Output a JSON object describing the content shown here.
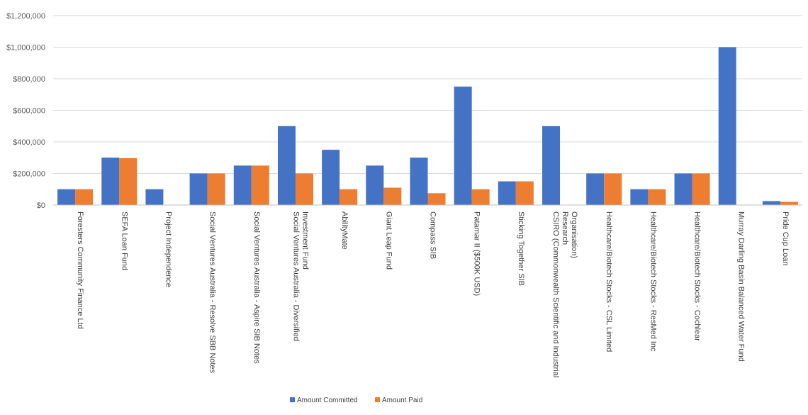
{
  "chart_data": {
    "type": "bar",
    "title": "",
    "xlabel": "",
    "ylabel": "",
    "ylim": [
      0,
      1200000
    ],
    "yticks": [
      0,
      200000,
      400000,
      600000,
      800000,
      1000000,
      1200000
    ],
    "ytick_labels": [
      "$0",
      "$200,000",
      "$400,000",
      "$600,000",
      "$800,000",
      "$1,000,000",
      "$1,200,000"
    ],
    "grid": "horizontal",
    "legend_position": "bottom",
    "categories": [
      "Foresters Community Finance Ltd",
      "SEFA Loan Fund",
      "Project Independence",
      "Social Ventures Australia - Resolve SBB Notes",
      "Social Ventures Australia - Aspire SIB Notes",
      "Social Ventures Australia - Diversified Investment Fund",
      "AbilityMate",
      "Giant Leap Fund",
      "Compass SIB",
      "Patamar II ($500K USD)",
      "Sticking Together SIB",
      "CSIRO (Commonwealth Scientific and Industrial Research Organisation)",
      "Healthcare/Biotech Stocks - CSL Limited",
      "Healthcare/Biotech Stocks - ResMed Inc",
      "Healthcare/Biotech Stocks - Cochlear",
      "Murray Darling Basin Balanced Water Fund",
      "Pride Cup Loan"
    ],
    "category_label_lines": [
      [
        "Foresters Community Finance Ltd"
      ],
      [
        "SEFA Loan Fund"
      ],
      [
        "Project Independence"
      ],
      [
        "Social Ventures Australia - Resolve SBB Notes"
      ],
      [
        "Social Ventures Australia - Aspire SIB Notes"
      ],
      [
        "Social Ventures Australia - Diversified",
        "Investment Fund"
      ],
      [
        "AbilityMate"
      ],
      [
        "Giant Leap Fund"
      ],
      [
        "Compass SIB"
      ],
      [
        "Patamar II ($500K USD)"
      ],
      [
        "Sticking Together SIB"
      ],
      [
        "CSIRO (Commonwealth Scientific and Industrial",
        "Research",
        "Organisation)"
      ],
      [
        "Healthcare/Biotech Stocks - CSL Limited"
      ],
      [
        "Healthcare/Biotech Stocks - ResMed Inc"
      ],
      [
        "Healthcare/Biotech Stocks - Cochlear"
      ],
      [
        "Murray Darling Basin Balanced Water Fund"
      ],
      [
        "Pride Cup Loan"
      ]
    ],
    "series": [
      {
        "name": "Amount  Committed",
        "color": "#4472c4",
        "values": [
          100000,
          300000,
          100000,
          200000,
          250000,
          500000,
          350000,
          250000,
          300000,
          750000,
          150000,
          500000,
          200000,
          100000,
          200000,
          1000000,
          25000
        ]
      },
      {
        "name": "Amount Paid",
        "color": "#ed7d31",
        "values": [
          100000,
          297000,
          0,
          200000,
          250000,
          200000,
          100000,
          110000,
          75000,
          100000,
          150000,
          0,
          200000,
          100000,
          200000,
          0,
          20000
        ]
      }
    ]
  }
}
